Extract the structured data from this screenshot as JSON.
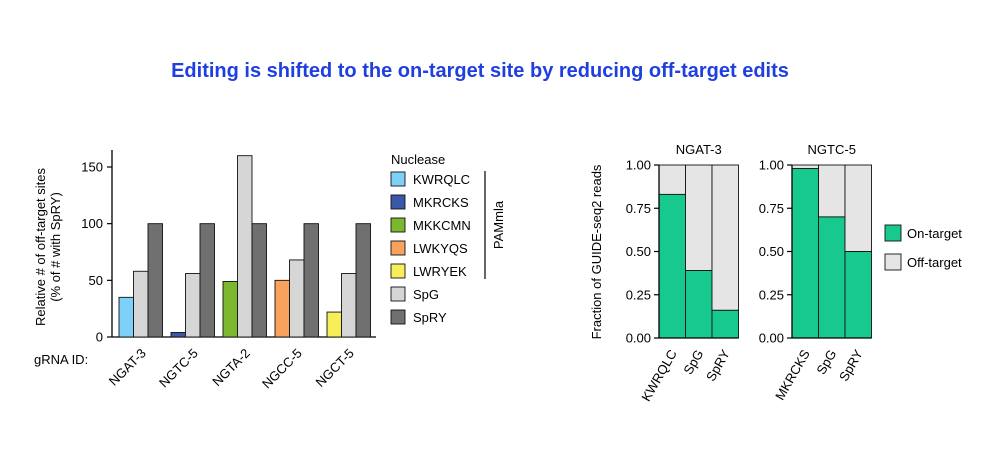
{
  "page_title": "Editing is shifted to the on-target site by reducing off-target edits",
  "colors": {
    "title": "#1f3fe0",
    "KWRQLC": "#7dd0f7",
    "MKRCKS": "#3a57a8",
    "MKKCMN": "#7cb82f",
    "LWKYQS": "#f9a25e",
    "LWRYEK": "#f8ee5a",
    "SpG": "#d6d6d6",
    "SpRY": "#707070",
    "on_target": "#17c98e",
    "off_target": "#e5e5e5"
  },
  "chart_data": [
    {
      "type": "bar",
      "ylabel_lines": [
        "Relative # of off-target sites",
        "(% of # with SpRY)"
      ],
      "row_label": "gRNA ID:",
      "ylim": [
        0,
        165
      ],
      "yticks": [
        0,
        50,
        100,
        150
      ],
      "legend_title": "Nuclease",
      "legend_bracket_label": "PAMmla",
      "categories": [
        "NGAT-3",
        "NGTC-5",
        "NGTA-2",
        "NGCC-5",
        "NGCT-5"
      ],
      "groups": [
        {
          "category": "NGAT-3",
          "bars": [
            {
              "nuclease": "KWRQLC",
              "value": 35
            },
            {
              "nuclease": "SpG",
              "value": 58
            },
            {
              "nuclease": "SpRY",
              "value": 100
            }
          ]
        },
        {
          "category": "NGTC-5",
          "bars": [
            {
              "nuclease": "MKRCKS",
              "value": 4
            },
            {
              "nuclease": "SpG",
              "value": 56
            },
            {
              "nuclease": "SpRY",
              "value": 100
            }
          ]
        },
        {
          "category": "NGTA-2",
          "bars": [
            {
              "nuclease": "MKKCMN",
              "value": 49
            },
            {
              "nuclease": "SpG",
              "value": 160
            },
            {
              "nuclease": "SpRY",
              "value": 100
            }
          ]
        },
        {
          "category": "NGCC-5",
          "bars": [
            {
              "nuclease": "LWKYQS",
              "value": 50
            },
            {
              "nuclease": "SpG",
              "value": 68
            },
            {
              "nuclease": "SpRY",
              "value": 100
            }
          ]
        },
        {
          "category": "NGCT-5",
          "bars": [
            {
              "nuclease": "LWRYEK",
              "value": 22
            },
            {
              "nuclease": "SpG",
              "value": 56
            },
            {
              "nuclease": "SpRY",
              "value": 100
            }
          ]
        }
      ],
      "legend": [
        "KWRQLC",
        "MKRCKS",
        "MKKCMN",
        "LWKYQS",
        "LWRYEK",
        "SpG",
        "SpRY"
      ],
      "grid": false
    },
    {
      "type": "bar",
      "stacked": true,
      "ylabel": "Fraction of GUIDE-seq2 reads",
      "ylim": [
        0,
        1
      ],
      "yticks": [
        "0.00",
        "0.25",
        "0.50",
        "0.75",
        "1.00"
      ],
      "series_names": [
        "On-target",
        "Off-target"
      ],
      "panels": [
        {
          "title": "NGAT-3",
          "categories": [
            "KWRQLC",
            "SpG",
            "SpRY"
          ],
          "on_target": [
            0.83,
            0.39,
            0.16
          ],
          "off_target": [
            0.17,
            0.61,
            0.84
          ]
        },
        {
          "title": "NGTC-5",
          "categories": [
            "MKRCKS",
            "SpG",
            "SpRY"
          ],
          "on_target": [
            0.98,
            0.7,
            0.5
          ],
          "off_target": [
            0.02,
            0.3,
            0.5
          ]
        }
      ],
      "legend": [
        "On-target",
        "Off-target"
      ],
      "grid": false
    }
  ]
}
